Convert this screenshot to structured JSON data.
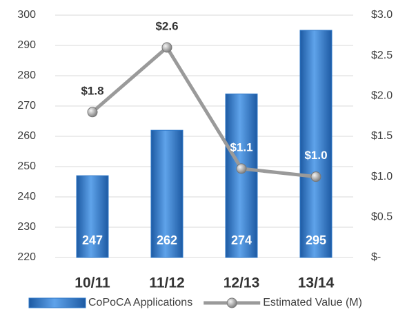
{
  "chart_data": {
    "type": "bar_line",
    "categories": [
      "10/11",
      "11/12",
      "12/13",
      "13/14"
    ],
    "series": [
      {
        "name": "CoPoCA Applications",
        "type": "bar",
        "color": "#2f78c8",
        "values": [
          247,
          262,
          274,
          295
        ]
      },
      {
        "name": "Estimated Value (M)",
        "type": "line",
        "axis": "y2",
        "color": "#9a9a9a",
        "values": [
          1.8,
          2.6,
          1.1,
          1.0
        ],
        "value_labels": [
          "$1.8",
          "$2.6",
          "$1.1",
          "$1.0"
        ]
      }
    ],
    "ylim": [
      220,
      300
    ],
    "yticks": [
      220,
      230,
      240,
      250,
      260,
      270,
      280,
      290,
      300
    ],
    "y2lim": [
      0,
      3
    ],
    "y2ticks": [
      {
        "value": 0,
        "label": "$-"
      },
      {
        "value": 0.5,
        "label": "$0.5"
      },
      {
        "value": 1.0,
        "label": "$1.0"
      },
      {
        "value": 1.5,
        "label": "$1.5"
      },
      {
        "value": 2.0,
        "label": "$2.0"
      },
      {
        "value": 2.5,
        "label": "$2.5"
      },
      {
        "value": 3.0,
        "label": "$3.0"
      }
    ],
    "grid": true,
    "legend": "bottom"
  }
}
